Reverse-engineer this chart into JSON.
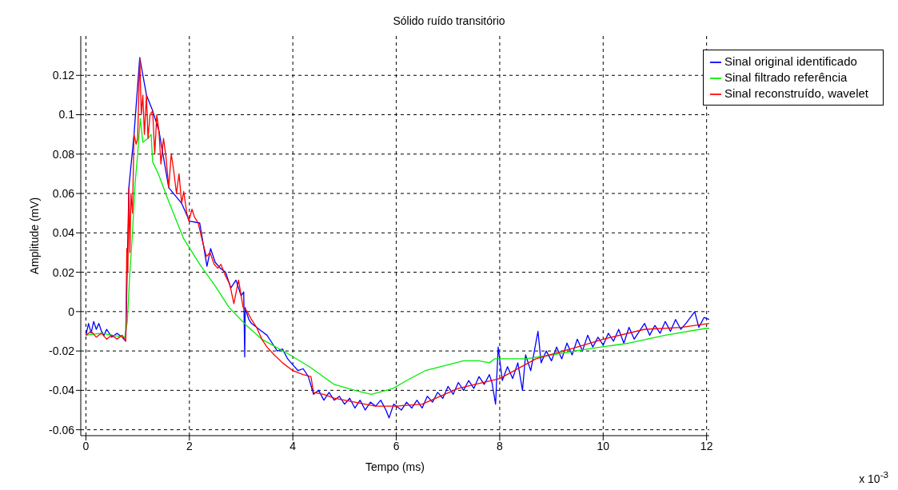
{
  "chart_data": {
    "type": "line",
    "title": "Sólido ruído transitório",
    "xlabel": "Tempo (ms)",
    "ylabel": "Amplitude (mV)",
    "annotations": [
      "x 10$^{-3}$"
    ],
    "xlim": [
      -0.1,
      12.05
    ],
    "xticks": [
      0,
      2,
      4,
      6,
      8,
      10,
      12
    ],
    "ylim": [
      -0.063,
      0.14
    ],
    "yticks": [
      -0.06,
      -0.04,
      -0.02,
      0,
      0.02,
      0.04,
      0.06,
      0.08,
      0.1,
      0.12
    ],
    "grid": true,
    "legend": "top right",
    "marker": "none",
    "line_style": "solid",
    "series": [
      {
        "name": "Sinal original identificado",
        "color": "#0000ff",
        "x": [
          0,
          0.05,
          0.1,
          0.15,
          0.2,
          0.25,
          0.3,
          0.35,
          0.4,
          0.5,
          0.6,
          0.7,
          0.77,
          0.83,
          0.93,
          1.04,
          1.17,
          1.29,
          1.41,
          1.6,
          1.85,
          2.0,
          2.2,
          2.34,
          2.41,
          2.5,
          2.6,
          2.7,
          2.8,
          2.9,
          3.0,
          3.05,
          3.07,
          3.08,
          3.1,
          3.15,
          3.2,
          3.3,
          3.4,
          3.5,
          3.6,
          3.7,
          3.8,
          3.9,
          4.0,
          4.1,
          4.2,
          4.3,
          4.4,
          4.5,
          4.6,
          4.7,
          4.8,
          4.9,
          5.0,
          5.1,
          5.2,
          5.3,
          5.4,
          5.5,
          5.6,
          5.7,
          5.8,
          5.86,
          5.95,
          6.1,
          6.2,
          6.3,
          6.4,
          6.5,
          6.6,
          6.7,
          6.8,
          6.9,
          7.0,
          7.1,
          7.2,
          7.3,
          7.4,
          7.5,
          7.6,
          7.7,
          7.8,
          7.85,
          7.92,
          7.97,
          8.05,
          8.15,
          8.25,
          8.35,
          8.44,
          8.5,
          8.6,
          8.74,
          8.8,
          8.9,
          9.0,
          9.1,
          9.2,
          9.3,
          9.4,
          9.5,
          9.6,
          9.7,
          9.8,
          9.9,
          10.0,
          10.1,
          10.2,
          10.3,
          10.4,
          10.5,
          10.6,
          10.7,
          10.8,
          10.9,
          11.0,
          11.1,
          11.2,
          11.3,
          11.4,
          11.5,
          11.6,
          11.77,
          11.85,
          11.95,
          12.05
        ],
        "values": [
          -0.012,
          -0.006,
          -0.011,
          -0.005,
          -0.009,
          -0.006,
          -0.01,
          -0.012,
          -0.009,
          -0.013,
          -0.011,
          -0.013,
          -0.015,
          0.063,
          0.09,
          0.129,
          0.11,
          0.102,
          0.092,
          0.063,
          0.055,
          0.046,
          0.045,
          0.023,
          0.032,
          0.025,
          0.022,
          0.02,
          0.012,
          0.016,
          0.008,
          0.01,
          -0.023,
          0.002,
          0.0,
          -0.004,
          -0.006,
          -0.008,
          -0.01,
          -0.012,
          -0.016,
          -0.02,
          -0.019,
          -0.024,
          -0.027,
          -0.03,
          -0.029,
          -0.033,
          -0.042,
          -0.04,
          -0.045,
          -0.041,
          -0.045,
          -0.043,
          -0.047,
          -0.044,
          -0.049,
          -0.045,
          -0.05,
          -0.046,
          -0.048,
          -0.045,
          -0.05,
          -0.054,
          -0.047,
          -0.05,
          -0.046,
          -0.049,
          -0.045,
          -0.049,
          -0.043,
          -0.046,
          -0.041,
          -0.044,
          -0.038,
          -0.042,
          -0.036,
          -0.04,
          -0.035,
          -0.039,
          -0.033,
          -0.037,
          -0.032,
          -0.036,
          -0.047,
          -0.018,
          -0.035,
          -0.028,
          -0.034,
          -0.026,
          -0.04,
          -0.022,
          -0.03,
          -0.01,
          -0.026,
          -0.02,
          -0.025,
          -0.018,
          -0.024,
          -0.016,
          -0.022,
          -0.014,
          -0.02,
          -0.012,
          -0.018,
          -0.013,
          -0.017,
          -0.011,
          -0.015,
          -0.009,
          -0.016,
          -0.008,
          -0.014,
          -0.01,
          -0.006,
          -0.012,
          -0.007,
          -0.011,
          -0.005,
          -0.01,
          -0.004,
          -0.009,
          -0.006,
          0.0,
          -0.008,
          -0.003,
          -0.004
        ]
      },
      {
        "name": "Sinal filtrado referência",
        "color": "#00ee00",
        "x": [
          0,
          0.3,
          0.5,
          0.75,
          0.8,
          0.85,
          0.9,
          0.95,
          1.0,
          1.05,
          1.1,
          1.2,
          1.26,
          1.29,
          1.4,
          1.6,
          1.89,
          2.2,
          2.5,
          2.77,
          3.1,
          3.4,
          3.88,
          4.32,
          4.8,
          5.2,
          5.52,
          5.94,
          6.2,
          6.56,
          7.0,
          7.3,
          7.6,
          7.8,
          7.9,
          8.5,
          9.0,
          9.7,
          10.5,
          11.2,
          11.99,
          12.05
        ],
        "values": [
          -0.012,
          -0.011,
          -0.012,
          -0.013,
          -0.005,
          0.02,
          0.04,
          0.065,
          0.08,
          0.098,
          0.086,
          0.088,
          0.09,
          0.076,
          0.07,
          0.056,
          0.037,
          0.024,
          0.013,
          0.002,
          -0.007,
          -0.014,
          -0.021,
          -0.028,
          -0.037,
          -0.04,
          -0.042,
          -0.039,
          -0.035,
          -0.03,
          -0.027,
          -0.025,
          -0.025,
          -0.026,
          -0.024,
          -0.024,
          -0.022,
          -0.019,
          -0.016,
          -0.012,
          -0.0085,
          -0.0085
        ]
      },
      {
        "name": "Sinal reconstruído, wavelet",
        "color": "#ff0000",
        "x": [
          0,
          0.1,
          0.2,
          0.3,
          0.4,
          0.5,
          0.6,
          0.7,
          0.77,
          0.79,
          0.81,
          0.83,
          0.85,
          0.87,
          0.9,
          0.93,
          0.97,
          1.0,
          1.04,
          1.07,
          1.1,
          1.13,
          1.17,
          1.2,
          1.24,
          1.29,
          1.33,
          1.37,
          1.41,
          1.45,
          1.5,
          1.55,
          1.6,
          1.65,
          1.69,
          1.75,
          1.8,
          1.85,
          1.89,
          1.95,
          1.99,
          2.05,
          2.1,
          2.17,
          2.25,
          2.33,
          2.4,
          2.48,
          2.55,
          2.61,
          2.7,
          2.78,
          2.86,
          2.95,
          3.04,
          3.12,
          3.2,
          3.3,
          3.4,
          3.5,
          3.64,
          3.8,
          4.0,
          4.2,
          4.35,
          4.4,
          4.6,
          4.8,
          5.2,
          5.6,
          5.9,
          6.0,
          6.5,
          7.2,
          8.0,
          8.7,
          9.5,
          10.0,
          10.8,
          11.5,
          12.05
        ],
        "values": [
          -0.012,
          -0.01,
          -0.013,
          -0.011,
          -0.014,
          -0.012,
          -0.014,
          -0.012,
          -0.015,
          0.032,
          0.02,
          0.063,
          0.03,
          0.06,
          0.05,
          0.09,
          0.085,
          0.088,
          0.129,
          0.1,
          0.11,
          0.09,
          0.11,
          0.088,
          0.1,
          0.102,
          0.08,
          0.1,
          0.092,
          0.075,
          0.088,
          0.078,
          0.063,
          0.08,
          0.073,
          0.06,
          0.07,
          0.055,
          0.061,
          0.05,
          0.046,
          0.052,
          0.048,
          0.045,
          0.036,
          0.028,
          0.03,
          0.024,
          0.022,
          0.024,
          0.018,
          0.014,
          0.004,
          0.016,
          0.002,
          0.0,
          -0.004,
          -0.008,
          -0.014,
          -0.018,
          -0.022,
          -0.026,
          -0.03,
          -0.032,
          -0.033,
          -0.041,
          -0.042,
          -0.044,
          -0.046,
          -0.048,
          -0.048,
          -0.048,
          -0.047,
          -0.039,
          -0.034,
          -0.024,
          -0.018,
          -0.014,
          -0.009,
          -0.008,
          -0.006
        ]
      }
    ]
  }
}
